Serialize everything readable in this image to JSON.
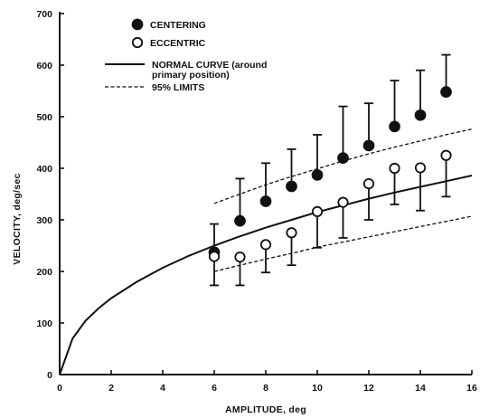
{
  "chart_data": {
    "type": "scatter",
    "xlabel": "AMPLITUDE, deg",
    "ylabel": "VELOCITY, deg/sec",
    "xlim": [
      0,
      16
    ],
    "ylim": [
      0,
      700
    ],
    "x_ticks": [
      0,
      2,
      4,
      6,
      8,
      10,
      12,
      14,
      16
    ],
    "y_ticks": [
      0,
      100,
      200,
      300,
      400,
      500,
      600,
      700
    ],
    "x_tick_labels": [
      "0",
      "2",
      "4",
      "6",
      "8",
      "10",
      "12",
      "14",
      "16"
    ],
    "y_tick_labels": [
      "0",
      "100",
      "200",
      "300",
      "400",
      "500",
      "600",
      "700"
    ],
    "grid": false,
    "legend_position": "top-left",
    "legend": {
      "centering": "CENTERING",
      "eccentric": "ECCENTRIC",
      "normal_line1": "NORMAL CURVE (around",
      "normal_line2": "primary position)",
      "limits": "95% LIMITS"
    },
    "series": [
      {
        "name": "CENTERING",
        "marker": "filled-circle",
        "x": [
          6,
          7,
          8,
          9,
          10,
          11,
          12,
          13,
          14,
          15
        ],
        "y": [
          237,
          298,
          336,
          365,
          387,
          420,
          444,
          481,
          503,
          548
        ],
        "error_upper": [
          292,
          380,
          410,
          437,
          465,
          520,
          526,
          570,
          590,
          620
        ]
      },
      {
        "name": "ECCENTRIC",
        "marker": "open-circle",
        "x": [
          6,
          7,
          8,
          9,
          10,
          11,
          12,
          13,
          14,
          15
        ],
        "y": [
          229,
          228,
          252,
          275,
          316,
          334,
          370,
          400,
          401,
          425
        ],
        "error_lower": [
          173,
          173,
          198,
          212,
          246,
          265,
          300,
          330,
          318,
          345
        ]
      },
      {
        "name": "NORMAL CURVE (around primary position)",
        "style": "solid",
        "x": [
          0,
          0.5,
          1,
          1.5,
          2,
          3,
          4,
          5,
          6,
          7,
          8,
          9,
          10,
          11,
          12,
          13,
          14,
          15,
          16
        ],
        "y": [
          0,
          70,
          104,
          128,
          148,
          180,
          207,
          230,
          250,
          268,
          285,
          300,
          315,
          328,
          341,
          353,
          364,
          375,
          386
        ]
      },
      {
        "name": "95% LIMITS (upper)",
        "style": "dashed",
        "x": [
          6,
          7,
          8,
          9,
          10,
          11,
          12,
          13,
          14,
          15,
          16
        ],
        "y": [
          332,
          350,
          368,
          384,
          399,
          414,
          428,
          441,
          453,
          465,
          476
        ]
      },
      {
        "name": "95% LIMITS (lower)",
        "style": "dashed",
        "x": [
          6,
          7,
          8,
          9,
          10,
          11,
          12,
          13,
          14,
          15,
          16
        ],
        "y": [
          200,
          212,
          224,
          235,
          247,
          257,
          267,
          277,
          287,
          297,
          307
        ]
      }
    ]
  }
}
